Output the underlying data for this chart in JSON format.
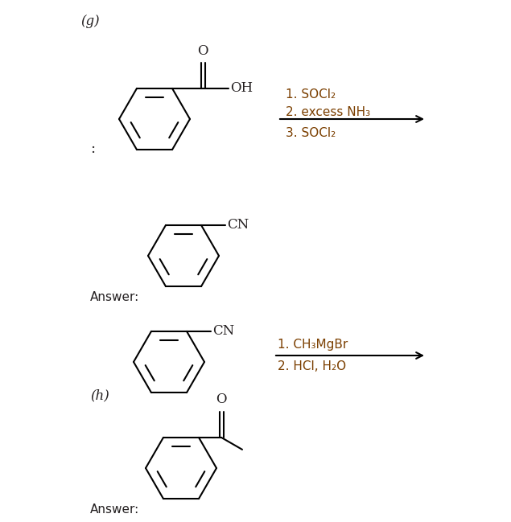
{
  "bg_color": "#ffffff",
  "text_color": "#231f20",
  "reagent_color": "#7b3f00",
  "fig_width": 6.35,
  "fig_height": 6.49,
  "label_g": "(g)",
  "label_h": "(h)",
  "answer_text": "Answer:",
  "reagents_g_1": "1. SOCl₂",
  "reagents_g_2": "2. excess NH₃",
  "reagents_g_3": "3. SOCl₂",
  "reagents_h_1": "1. CH₃MgBr",
  "reagents_h_2": "2. HCl, H₂O",
  "colon": ":",
  "CN_label": "CN",
  "O_label": "O",
  "OH_label": "OH"
}
